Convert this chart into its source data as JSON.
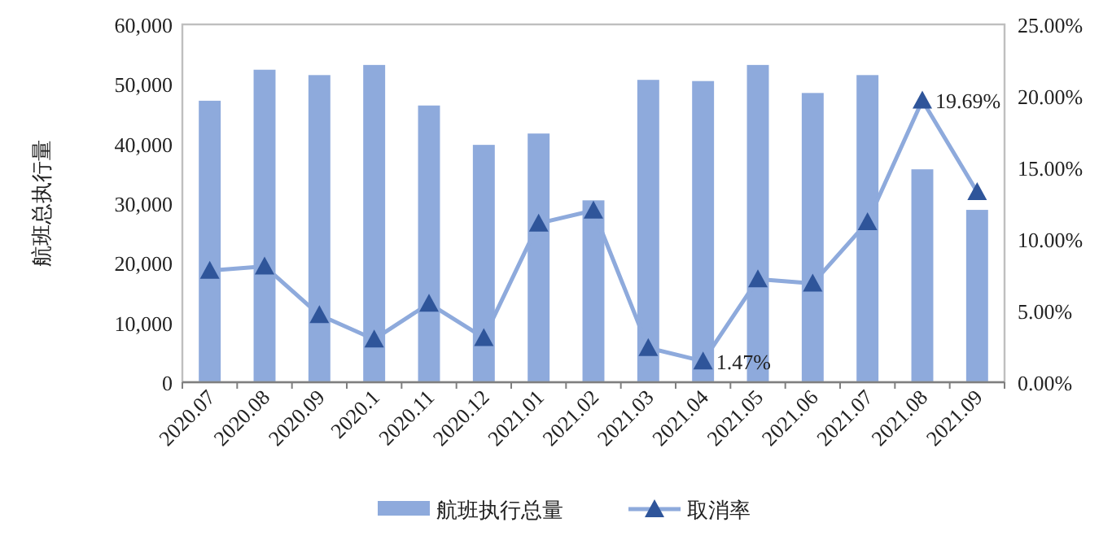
{
  "chart_data": {
    "type": "bar",
    "ylabel": "航班总执行量",
    "categories": [
      "2020.07",
      "2020.08",
      "2020.09",
      "2020.1",
      "2020.11",
      "2020.12",
      "2021.01",
      "2021.02",
      "2021.03",
      "2021.04",
      "2021.05",
      "2021.06",
      "2021.07",
      "2021.08",
      "2021.09"
    ],
    "series": [
      {
        "name": "航班执行总量",
        "color": "#8eaadc",
        "values": [
          47200,
          52400,
          51500,
          53200,
          46400,
          39800,
          41700,
          30500,
          50700,
          50500,
          53200,
          48500,
          51500,
          35700,
          28900
        ]
      },
      {
        "name": "取消率",
        "type": "line",
        "axis": "y2",
        "color": "#8eaadc",
        "marker": "triangle",
        "values": [
          7.8,
          8.1,
          4.7,
          3.0,
          5.5,
          3.1,
          11.1,
          12.0,
          2.4,
          1.47,
          7.2,
          6.9,
          11.2,
          19.69,
          13.3
        ],
        "value_labels": [
          null,
          null,
          null,
          null,
          null,
          null,
          null,
          null,
          null,
          "1.47%",
          null,
          null,
          null,
          "19.69%",
          null
        ]
      }
    ],
    "ylim": [
      0,
      60000
    ],
    "yticks": [
      0,
      {
        "value": 10000,
        "label": "10,000"
      },
      {
        "value": 20000,
        "label": "20,000"
      },
      {
        "value": 30000,
        "label": "30,000"
      },
      {
        "value": 40000,
        "label": "40,000"
      },
      {
        "value": 50000,
        "label": "50,000"
      },
      {
        "value": 60000,
        "label": "60,000"
      }
    ],
    "y2lim": [
      0,
      25
    ],
    "y2ticks": [
      {
        "value": 0,
        "label": "0.00%"
      },
      {
        "value": 5,
        "label": "5.00%"
      },
      {
        "value": 10,
        "label": "10.00%"
      },
      {
        "value": 15,
        "label": "15.00%"
      },
      {
        "value": 20,
        "label": "20.00%"
      },
      {
        "value": 25,
        "label": "25.00%"
      }
    ],
    "grid": false,
    "legend": "bottom"
  }
}
